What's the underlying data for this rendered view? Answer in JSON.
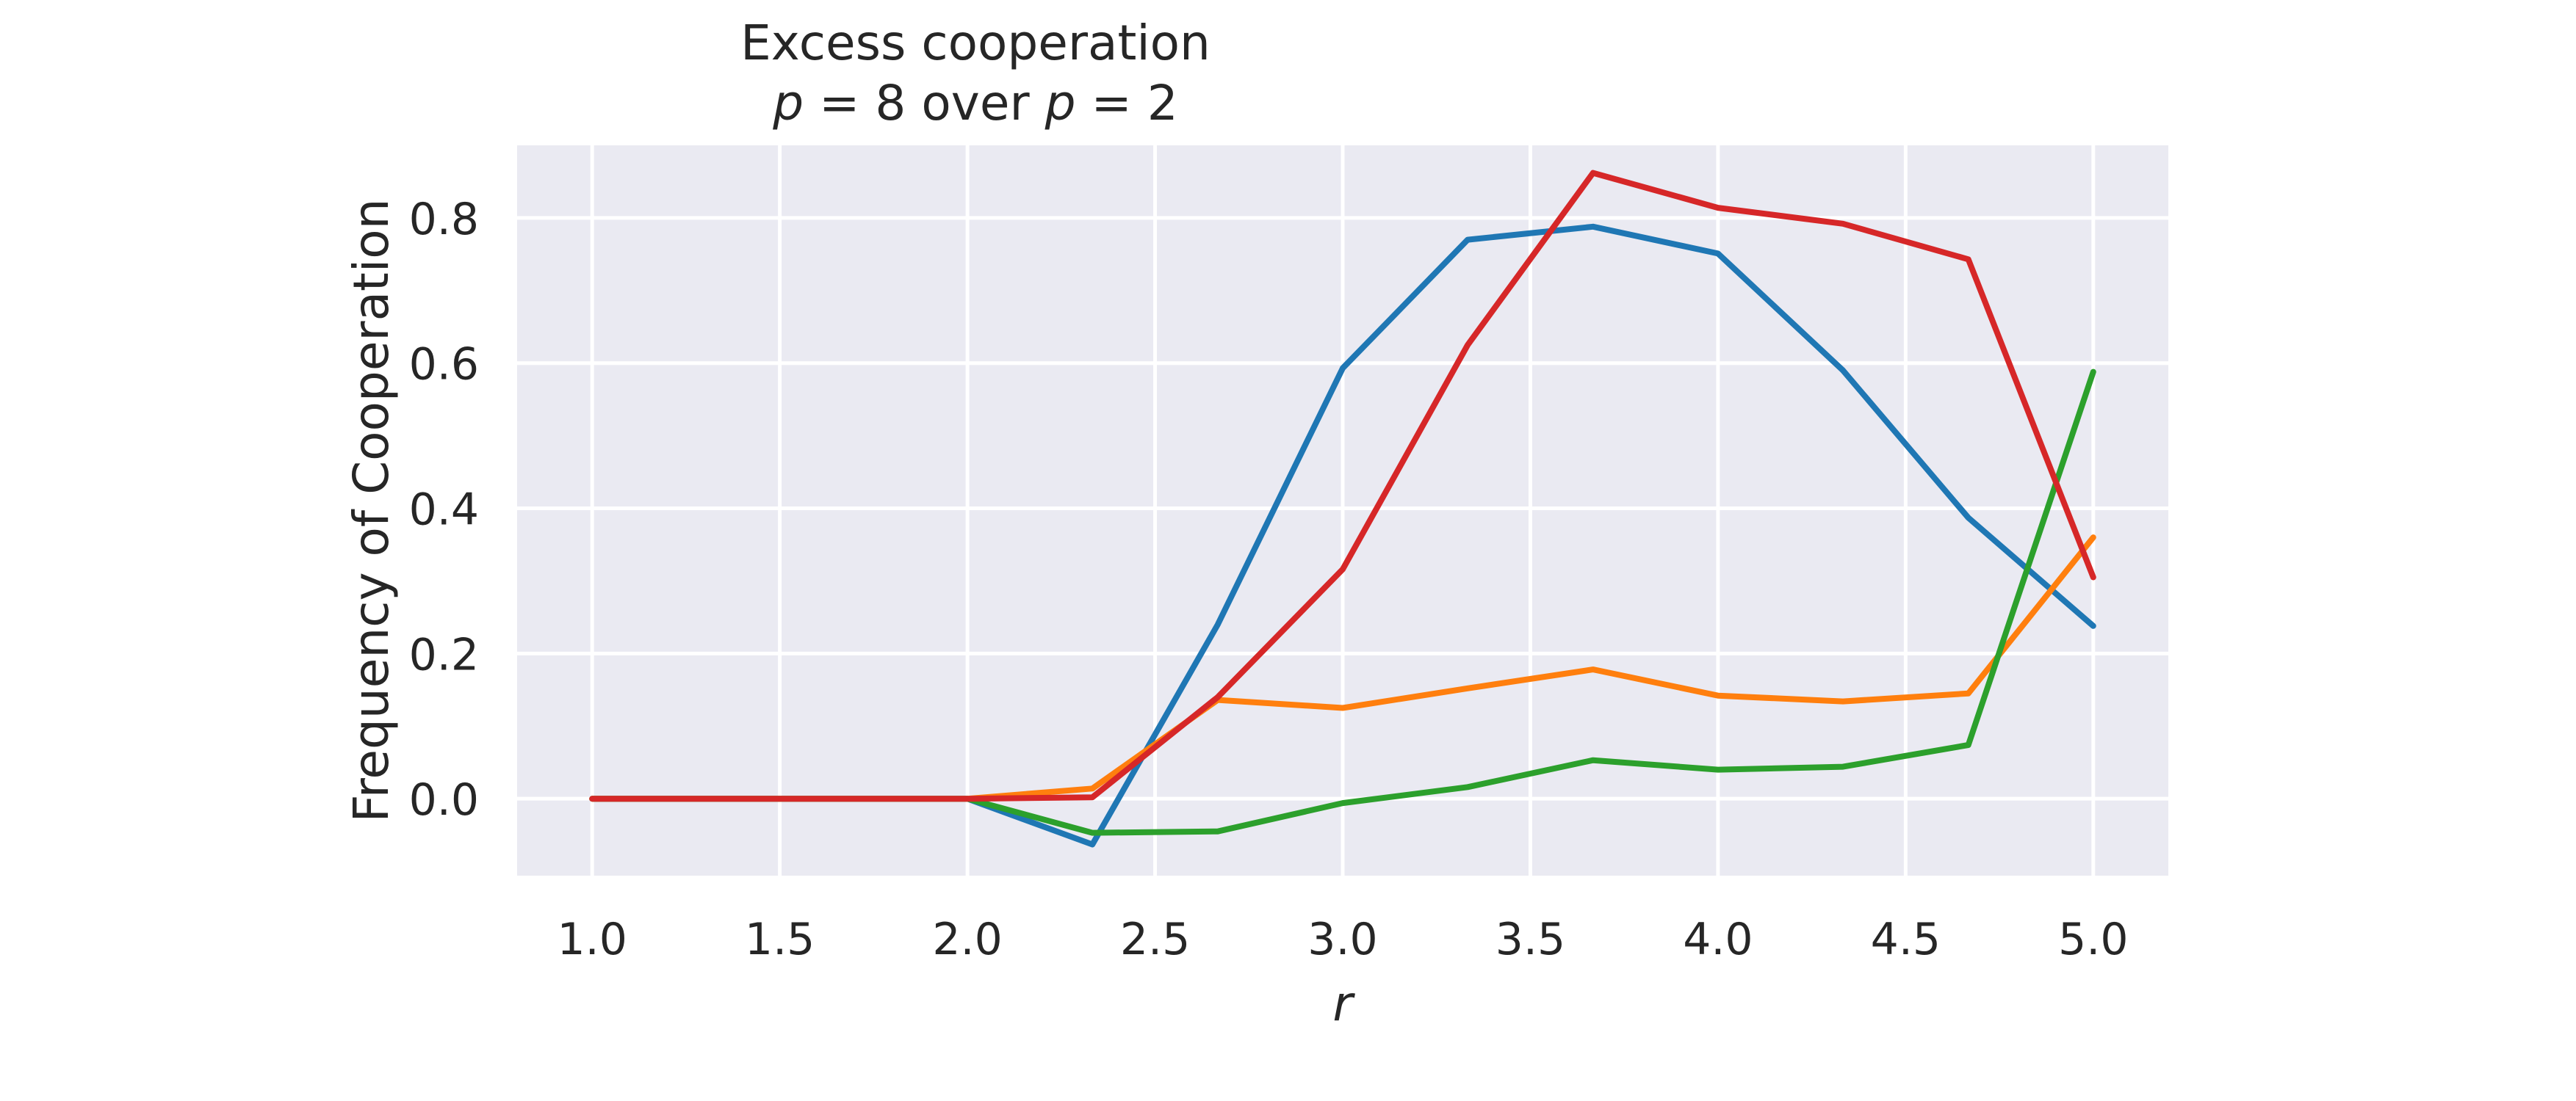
{
  "chart_data": {
    "type": "line",
    "title_line1": "Excess cooperation",
    "title_line2": {
      "var1": "p",
      "eq1": " = 8 over ",
      "var2": "p",
      "eq2": " = 2"
    },
    "xlabel": "r",
    "ylabel": "Frequency of Cooperation",
    "xlim": [
      0.8,
      5.2
    ],
    "ylim": [
      -0.106,
      0.9
    ],
    "xticks": [
      1.0,
      1.5,
      2.0,
      2.5,
      3.0,
      3.5,
      4.0,
      4.5,
      5.0
    ],
    "xtick_labels": [
      "1.0",
      "1.5",
      "2.0",
      "2.5",
      "3.0",
      "3.5",
      "4.0",
      "4.5",
      "5.0"
    ],
    "yticks": [
      0.0,
      0.2,
      0.4,
      0.6,
      0.8
    ],
    "ytick_labels": [
      "0.0",
      "0.2",
      "0.4",
      "0.6",
      "0.8"
    ],
    "grid": true,
    "background": "#eaeaf2",
    "x": [
      1.0,
      1.333,
      1.667,
      2.0,
      2.333,
      2.667,
      3.0,
      3.333,
      3.667,
      4.0,
      4.333,
      4.667,
      5.0
    ],
    "series": [
      {
        "color": "#1f77b4",
        "values": [
          0.0,
          0.0,
          0.0,
          0.0,
          -0.063,
          0.24,
          0.593,
          0.77,
          0.788,
          0.751,
          0.59,
          0.387,
          0.238
        ]
      },
      {
        "color": "#ff7f0e",
        "values": [
          0.0,
          0.0,
          0.0,
          0.0,
          0.014,
          0.136,
          0.125,
          0.152,
          0.178,
          0.142,
          0.134,
          0.145,
          0.36
        ]
      },
      {
        "color": "#2ca02c",
        "values": [
          0.0,
          0.0,
          0.0,
          0.0,
          -0.047,
          -0.045,
          -0.006,
          0.016,
          0.053,
          0.04,
          0.044,
          0.074,
          0.588
        ]
      },
      {
        "color": "#d62728",
        "values": [
          0.0,
          0.0,
          0.0,
          0.0,
          0.002,
          0.14,
          0.316,
          0.625,
          0.862,
          0.814,
          0.792,
          0.743,
          0.305
        ]
      }
    ]
  }
}
